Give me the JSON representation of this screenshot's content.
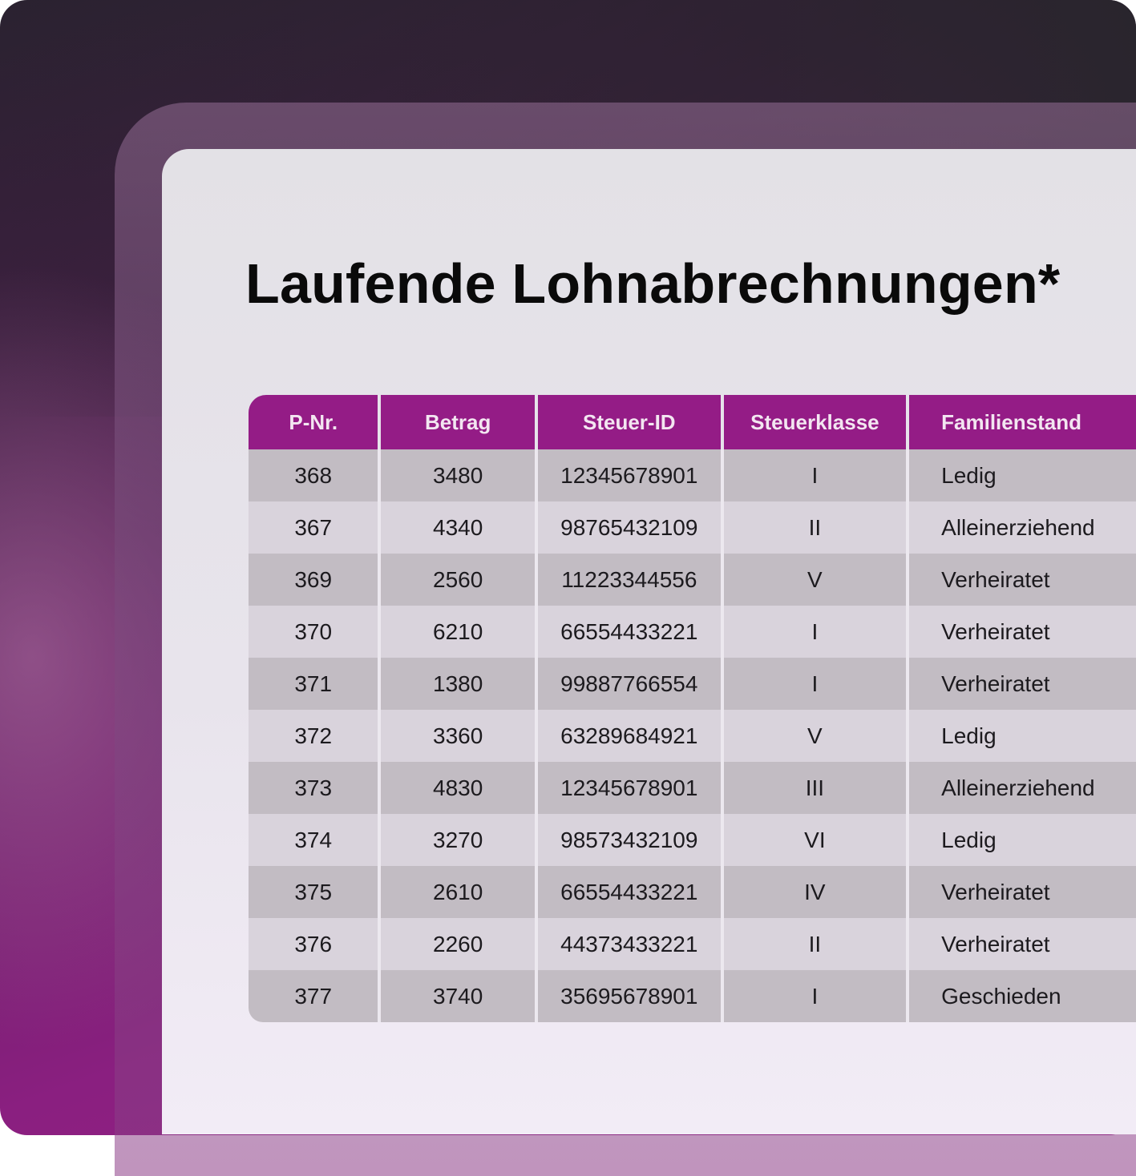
{
  "title": "Laufende Lohnabrechnungen*",
  "table": {
    "headers": [
      "P-Nr.",
      "Betrag",
      "Steuer-ID",
      "Steuerklasse",
      "Familienstand"
    ],
    "rows": [
      [
        "368",
        "3480",
        "12345678901",
        "I",
        "Ledig"
      ],
      [
        "367",
        "4340",
        "98765432109",
        "II",
        "Alleinerziehend"
      ],
      [
        "369",
        "2560",
        "11223344556",
        "V",
        "Verheiratet"
      ],
      [
        "370",
        "6210",
        "66554433221",
        "I",
        "Verheiratet"
      ],
      [
        "371",
        "1380",
        "99887766554",
        "I",
        "Verheiratet"
      ],
      [
        "372",
        "3360",
        "63289684921",
        "V",
        "Ledig"
      ],
      [
        "373",
        "4830",
        "12345678901",
        "III",
        "Alleinerziehend"
      ],
      [
        "374",
        "3270",
        "98573432109",
        "VI",
        "Ledig"
      ],
      [
        "375",
        "2610",
        "66554433221",
        "IV",
        "Verheiratet"
      ],
      [
        "376",
        "2260",
        "44373433221",
        "II",
        "Verheiratet"
      ],
      [
        "377",
        "3740",
        "35695678901",
        "I",
        "Geschieden"
      ]
    ]
  },
  "colors": {
    "header_bg": "#941c86",
    "row_dark": "#c2bcc3",
    "row_light": "#d9d3dc",
    "background_accent": "#8a1f80"
  }
}
